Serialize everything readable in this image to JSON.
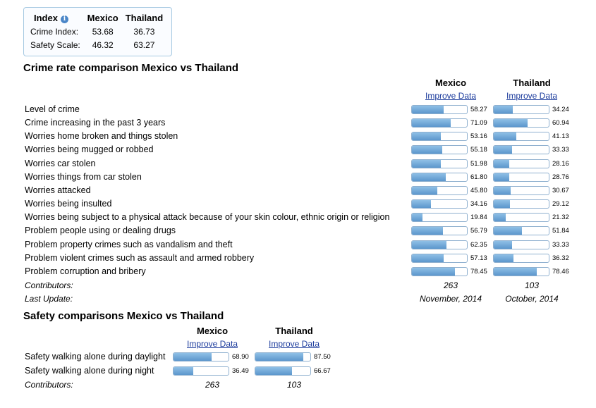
{
  "summary": {
    "header": {
      "index": "Index",
      "country1": "Mexico",
      "country2": "Thailand"
    },
    "rows": [
      {
        "label": "Crime Index:",
        "v1": "53.68",
        "v2": "36.73"
      },
      {
        "label": "Safety Scale:",
        "v1": "46.32",
        "v2": "63.27"
      }
    ]
  },
  "crime": {
    "title": "Crime rate comparison Mexico vs Thailand",
    "country1": "Mexico",
    "country2": "Thailand",
    "improve_label": "Improve Data",
    "rows": [
      {
        "label": "Level of crime",
        "v1": 58.27,
        "t1": "58.27",
        "v2": 34.24,
        "t2": "34.24"
      },
      {
        "label": "Crime increasing in the past 3 years",
        "v1": 71.09,
        "t1": "71.09",
        "v2": 60.94,
        "t2": "60.94"
      },
      {
        "label": "Worries home broken and things stolen",
        "v1": 53.16,
        "t1": "53.16",
        "v2": 41.13,
        "t2": "41.13"
      },
      {
        "label": "Worries being mugged or robbed",
        "v1": 55.18,
        "t1": "55.18",
        "v2": 33.33,
        "t2": "33.33"
      },
      {
        "label": "Worries car stolen",
        "v1": 51.98,
        "t1": "51.98",
        "v2": 28.16,
        "t2": "28.16"
      },
      {
        "label": "Worries things from car stolen",
        "v1": 61.8,
        "t1": "61.80",
        "v2": 28.76,
        "t2": "28.76"
      },
      {
        "label": "Worries attacked",
        "v1": 45.8,
        "t1": "45.80",
        "v2": 30.67,
        "t2": "30.67"
      },
      {
        "label": "Worries being insulted",
        "v1": 34.16,
        "t1": "34.16",
        "v2": 29.12,
        "t2": "29.12"
      },
      {
        "label": "Worries being subject to a physical attack because of your skin colour, ethnic origin or religion",
        "v1": 19.84,
        "t1": "19.84",
        "v2": 21.32,
        "t2": "21.32"
      },
      {
        "label": "Problem people using or dealing drugs",
        "v1": 56.79,
        "t1": "56.79",
        "v2": 51.84,
        "t2": "51.84"
      },
      {
        "label": "Problem property crimes such as vandalism and theft",
        "v1": 62.35,
        "t1": "62.35",
        "v2": 33.33,
        "t2": "33.33"
      },
      {
        "label": "Problem violent crimes such as assault and armed robbery",
        "v1": 57.13,
        "t1": "57.13",
        "v2": 36.32,
        "t2": "36.32"
      },
      {
        "label": "Problem corruption and bribery",
        "v1": 78.45,
        "t1": "78.45",
        "v2": 78.46,
        "t2": "78.46"
      }
    ],
    "contributors_label": "Contributors:",
    "contributors1": "263",
    "contributors2": "103",
    "last_update_label": "Last Update:",
    "last_update1": "November, 2014",
    "last_update2": "October, 2014"
  },
  "safety": {
    "title": "Safety comparisons Mexico vs Thailand",
    "country1": "Mexico",
    "country2": "Thailand",
    "improve_label": "Improve Data",
    "rows": [
      {
        "label": "Safety walking alone during daylight",
        "v1": 68.9,
        "t1": "68.90",
        "v2": 87.5,
        "t2": "87.50"
      },
      {
        "label": "Safety walking alone during night",
        "v1": 36.49,
        "t1": "36.49",
        "v2": 66.67,
        "t2": "66.67"
      }
    ],
    "contributors_label": "Contributors:",
    "contributors1": "263",
    "contributors2": "103"
  },
  "colors": {
    "bar_fill": "#6aa3d5",
    "bar_border": "#8fb0cf",
    "link": "#1a3a9c"
  }
}
